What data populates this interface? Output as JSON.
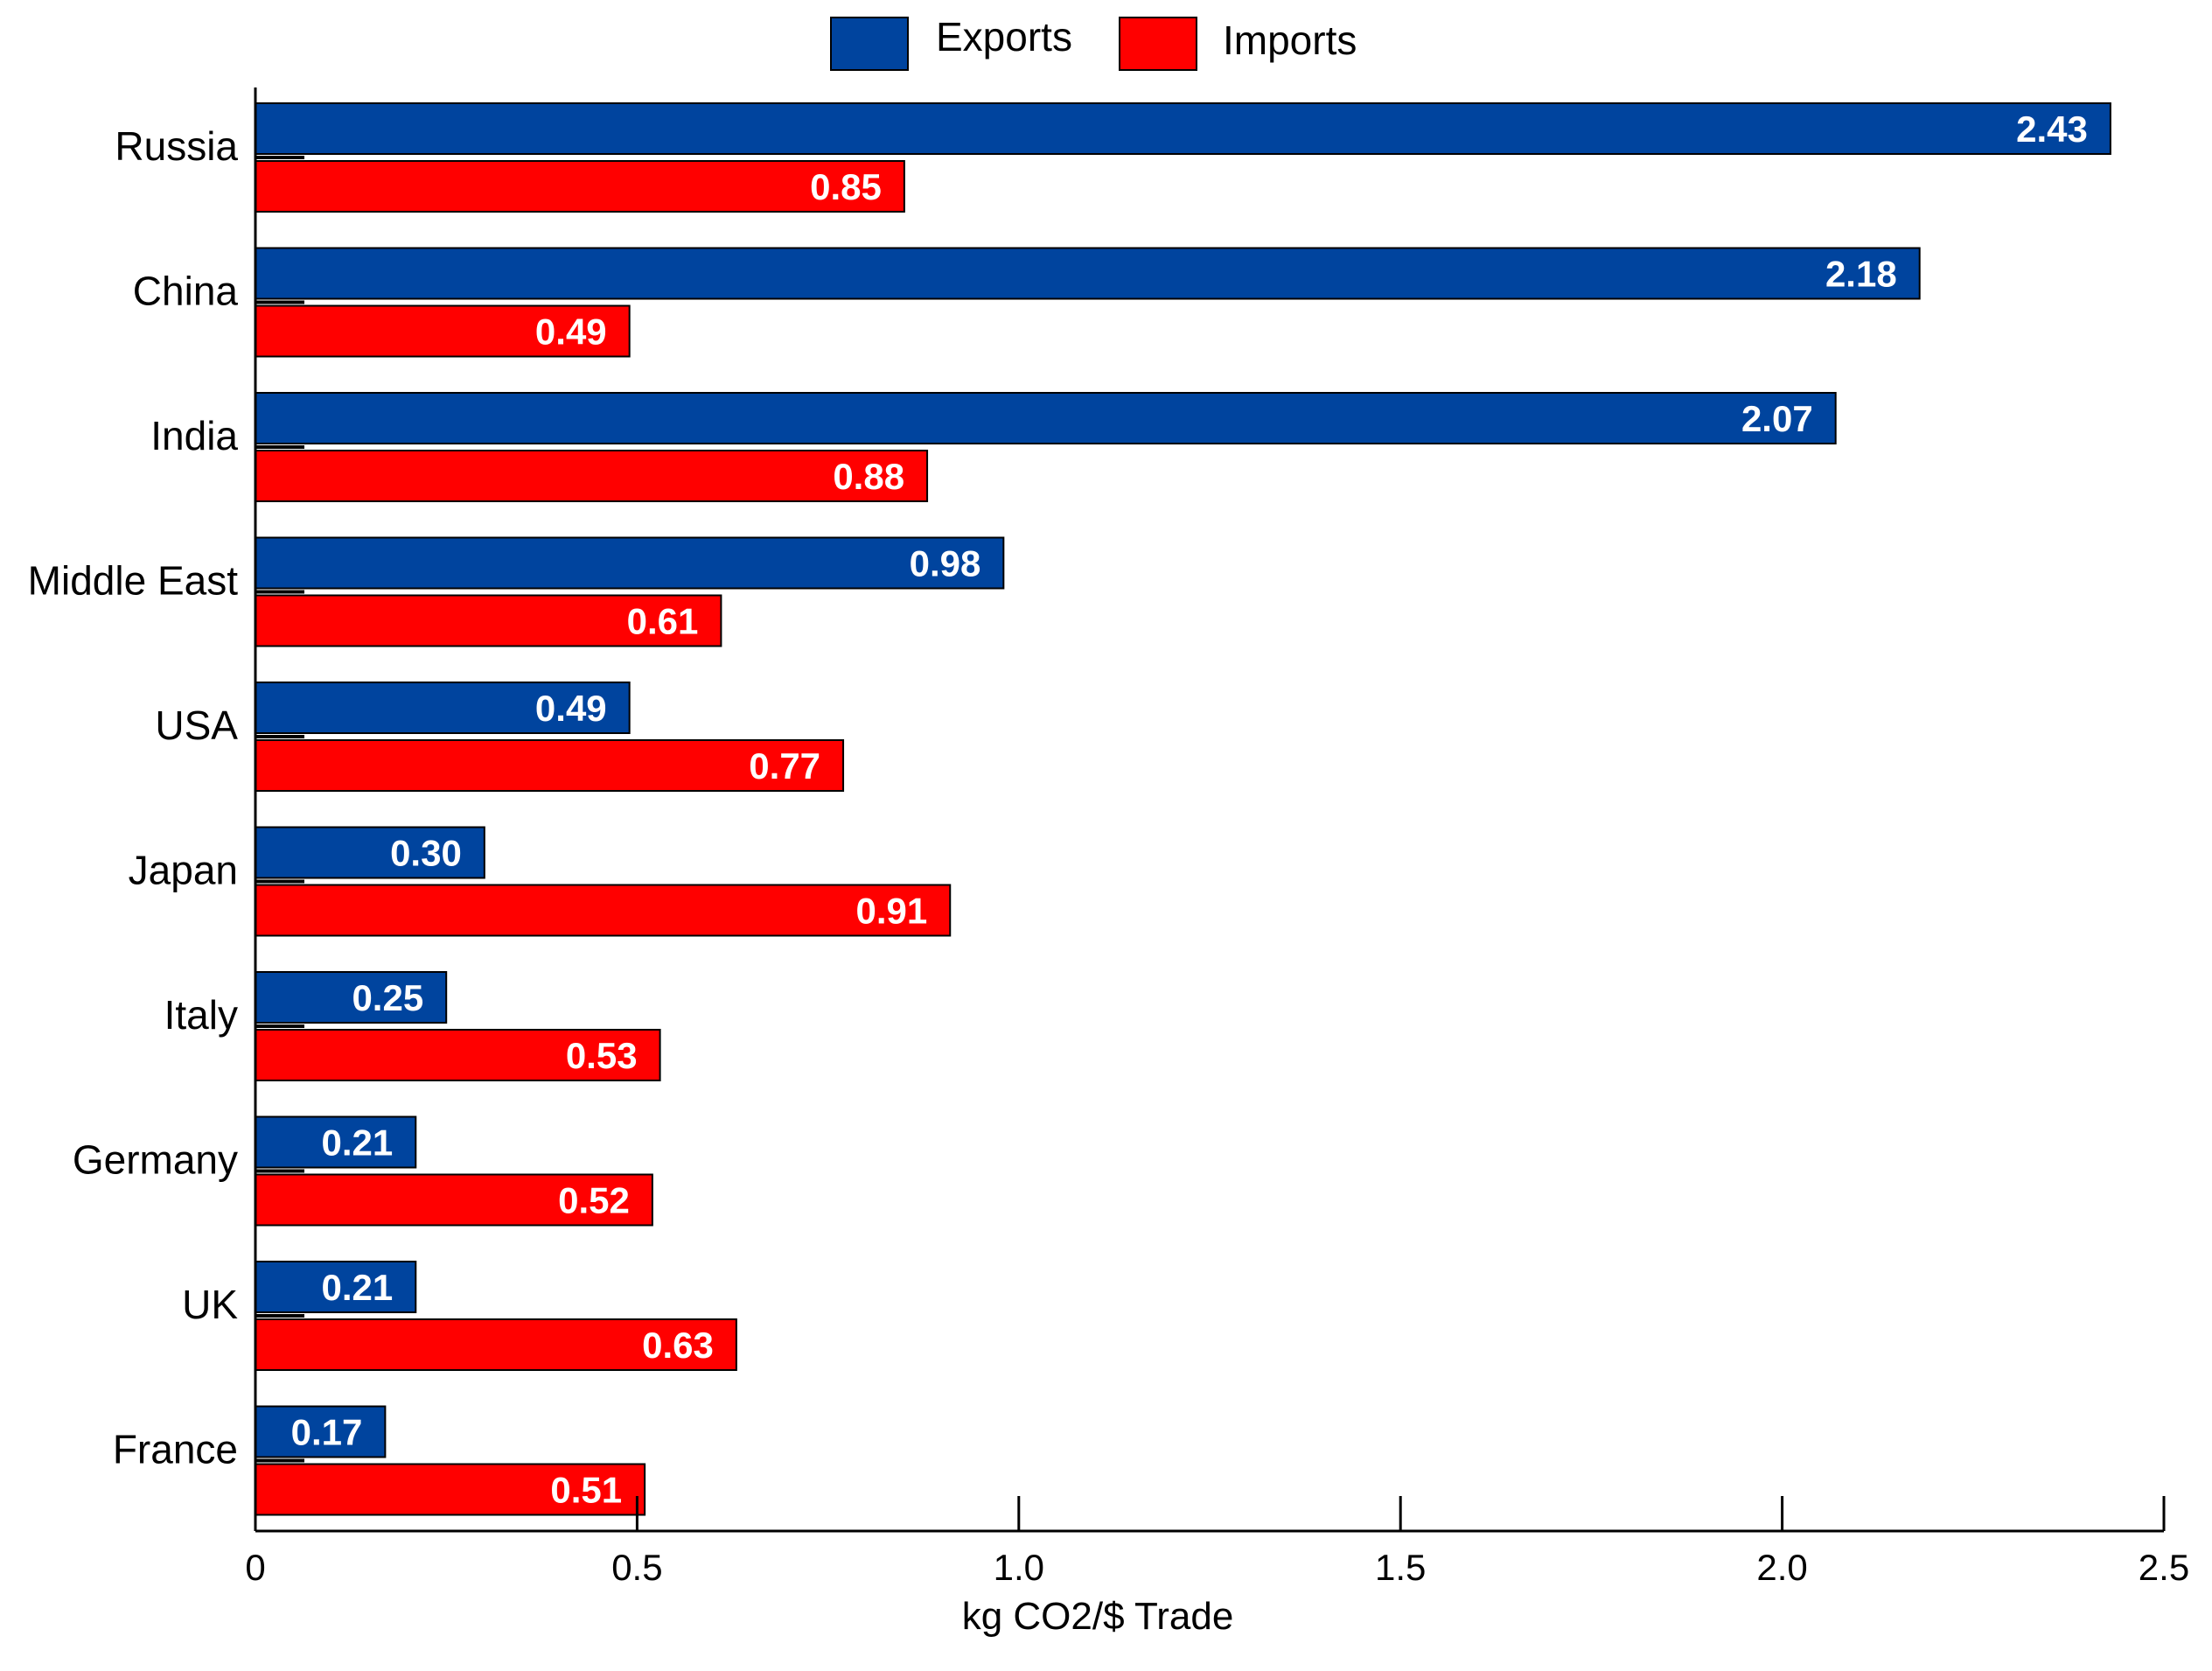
{
  "chart_data": {
    "type": "bar",
    "orientation": "horizontal",
    "categories": [
      "Russia",
      "China",
      "India",
      "Middle East",
      "USA",
      "Japan",
      "Italy",
      "Germany",
      "UK",
      "France"
    ],
    "series": [
      {
        "name": "Exports",
        "color": "#00449e",
        "values": [
          2.43,
          2.18,
          2.07,
          0.98,
          0.49,
          0.3,
          0.25,
          0.21,
          0.21,
          0.17
        ],
        "value_labels": [
          "2.43",
          "2.18",
          "2.07",
          "0.98",
          "0.49",
          "0.30",
          "0.25",
          "0.21",
          "0.21",
          "0.17"
        ]
      },
      {
        "name": "Imports",
        "color": "#ff0000",
        "values": [
          0.85,
          0.49,
          0.88,
          0.61,
          0.77,
          0.91,
          0.53,
          0.52,
          0.63,
          0.51
        ],
        "value_labels": [
          "0.85",
          "0.49",
          "0.88",
          "0.61",
          "0.77",
          "0.91",
          "0.53",
          "0.52",
          "0.63",
          "0.51"
        ]
      }
    ],
    "xlabel": "kg CO2/$ Trade",
    "xlim": [
      0,
      2.5
    ],
    "xticks": [
      0,
      0.5,
      1.0,
      1.5,
      2.0,
      2.5
    ],
    "xtick_labels": [
      "0",
      "0.5",
      "1.0",
      "1.5",
      "2.0",
      "2.5"
    ],
    "grid": false,
    "legend_position": "top-center"
  }
}
